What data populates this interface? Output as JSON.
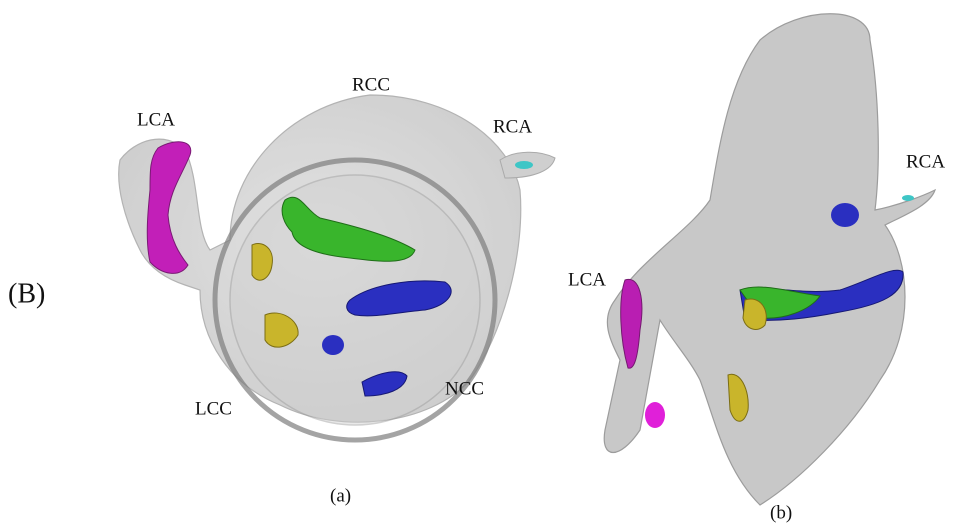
{
  "figure_label": "(B)",
  "panels": [
    {
      "caption": "(a)",
      "labels": [
        "RCC",
        "LCA",
        "RCA",
        "LCC",
        "NCC"
      ]
    },
    {
      "caption": "(b)",
      "labels": [
        "RCA",
        "LCA"
      ]
    }
  ]
}
